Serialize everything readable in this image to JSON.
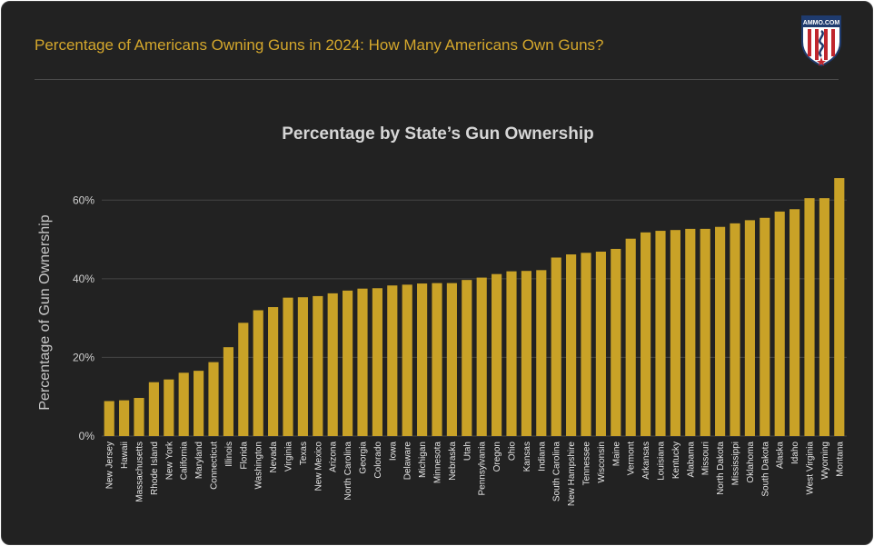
{
  "header": {
    "title": "Percentage of Americans Owning Guns in 2024: How Many Americans Own Guns?",
    "logo_text": "AMMO.COM"
  },
  "colors": {
    "bar": "#c9a227",
    "title": "#d4a72c",
    "background": "#222222",
    "grid": "#444444"
  },
  "chart_data": {
    "type": "bar",
    "title": "Percentage by State’s Gun Ownership",
    "xlabel": "",
    "ylabel": "Percentage of Gun Ownership",
    "ylim": [
      0,
      67
    ],
    "yticks": [
      0,
      20,
      40,
      60
    ],
    "ytick_labels": [
      "0%",
      "20%",
      "40%",
      "60%"
    ],
    "grid": true,
    "legend": "none",
    "categories": [
      "New Jersey",
      "Hawaii",
      "Massachusetts",
      "Rhode Island",
      "New York",
      "California",
      "Maryland",
      "Connecticut",
      "Illinois",
      "Florida",
      "Washington",
      "Nevada",
      "Virginia",
      "Texas",
      "New Mexico",
      "Arizona",
      "North Carolina",
      "Georgia",
      "Colorado",
      "Iowa",
      "Delaware",
      "Michigan",
      "Minnesota",
      "Nebraska",
      "Utah",
      "Pennsylvania",
      "Oregon",
      "Ohio",
      "Kansas",
      "Indiana",
      "South Carolina",
      "New Hampshire",
      "Tennessee",
      "Wisconsin",
      "Maine",
      "Vermont",
      "Arkansas",
      "Louisiana",
      "Kentucky",
      "Alabama",
      "Missouri",
      "North Dakota",
      "Mississippi",
      "Oklahoma",
      "South Dakota",
      "Alaska",
      "Idaho",
      "West Virginia",
      "Wyoming",
      "Montana"
    ],
    "values": [
      8.9,
      9.1,
      9.7,
      13.7,
      14.4,
      16.1,
      16.6,
      18.8,
      22.6,
      28.8,
      32.0,
      32.8,
      35.2,
      35.3,
      35.6,
      36.3,
      37.0,
      37.5,
      37.6,
      38.3,
      38.5,
      38.8,
      38.9,
      38.9,
      39.7,
      40.3,
      41.2,
      41.9,
      42.0,
      42.2,
      45.4,
      46.2,
      46.6,
      46.9,
      47.6,
      50.2,
      51.8,
      52.2,
      52.4,
      52.7,
      52.7,
      53.2,
      54.1,
      54.9,
      55.5,
      57.1,
      57.7,
      60.5,
      60.5,
      65.6
    ]
  }
}
